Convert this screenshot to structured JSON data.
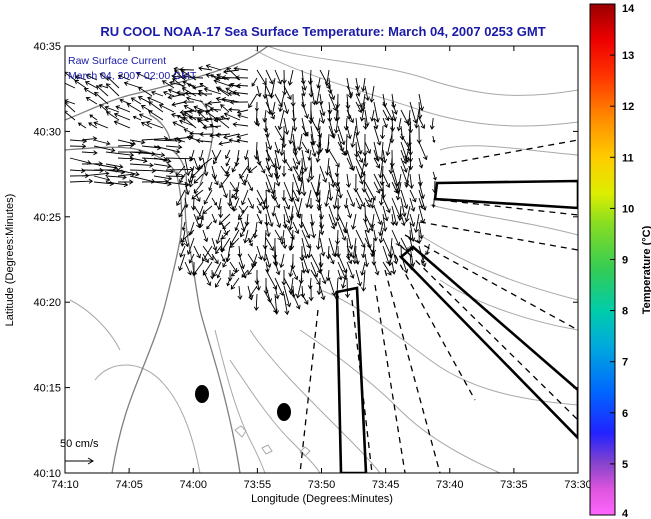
{
  "chart_data": {
    "type": "vector_field_map",
    "title": "RU COOL  NOAA-17  Sea Surface Temperature:  March 04, 2007 0253 GMT",
    "xlabel": "Longitude (Degrees:Minutes)",
    "ylabel": "Latitude (Degrees:Minutes)",
    "annotation_lines": [
      "Raw Surface Current",
      "March 04, 2007 02:00 GMT"
    ],
    "scale_label": "50 cm/s",
    "x_ticks": [
      "74:10",
      "74:05",
      "74:00",
      "73:55",
      "73:50",
      "73:45",
      "73:40",
      "73:35",
      "73:30"
    ],
    "y_ticks": [
      "40:10",
      "40:15",
      "40:20",
      "40:25",
      "40:30",
      "40:35"
    ],
    "xlim_minutes": [
      -10,
      30
    ],
    "ylim_minutes": [
      10,
      35
    ],
    "colorbar": {
      "label": "Temperature (°C)",
      "ticks": [
        "4",
        "5",
        "6",
        "7",
        "8",
        "9",
        "10",
        "11",
        "12",
        "13",
        "14"
      ],
      "range": [
        4,
        14
      ]
    },
    "colors": {
      "title": "#1a1aa6",
      "annotation": "#1a1aa6",
      "contour": "#a0a0a0",
      "coast": "#808080",
      "vectors": "#000000"
    }
  }
}
